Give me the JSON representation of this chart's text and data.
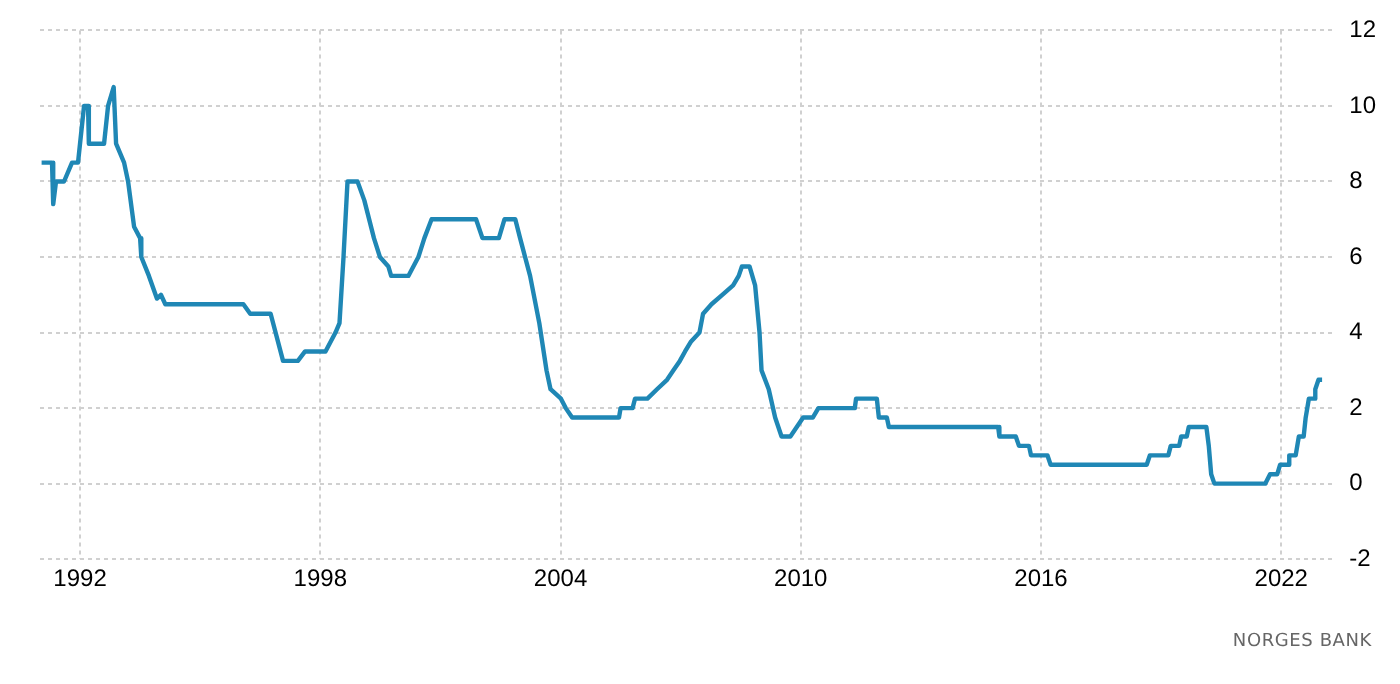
{
  "chart_data": {
    "type": "line",
    "annotations": [
      "NORGES BANK"
    ],
    "x": [
      1991.04,
      1991.3,
      1991.33,
      1991.4,
      1991.6,
      1991.8,
      1991.95,
      1992.1,
      1992.2,
      1992.22,
      1992.6,
      1992.7,
      1992.84,
      1992.9,
      1993.0,
      1993.1,
      1993.2,
      1993.35,
      1993.5,
      1993.53,
      1993.72,
      1993.92,
      1994.02,
      1994.13,
      1996.08,
      1996.25,
      1996.76,
      1997.07,
      1997.44,
      1997.62,
      1998.13,
      1998.38,
      1998.48,
      1998.58,
      1998.68,
      1998.93,
      1999.1,
      1999.34,
      1999.49,
      1999.7,
      1999.77,
      2000.2,
      2000.45,
      2000.6,
      2000.78,
      2001.89,
      2002.05,
      2002.46,
      2002.6,
      2002.87,
      2002.99,
      2003.24,
      2003.47,
      2003.65,
      2003.75,
      2004.01,
      2004.13,
      2004.29,
      2005.46,
      2005.5,
      2005.8,
      2005.86,
      2006.17,
      2006.41,
      2006.66,
      2006.82,
      2006.98,
      2007.11,
      2007.25,
      2007.47,
      2007.56,
      2007.77,
      2008.04,
      2008.31,
      2008.45,
      2008.53,
      2008.72,
      2008.86,
      2008.97,
      2009.02,
      2009.2,
      2009.36,
      2009.52,
      2009.74,
      2009.9,
      2010.06,
      2010.3,
      2010.44,
      2011.35,
      2011.38,
      2011.9,
      2011.95,
      2012.15,
      2012.2,
      2014.93,
      2014.96,
      2015.37,
      2015.45,
      2015.7,
      2015.75,
      2016.16,
      2016.24,
      2018.64,
      2018.72,
      2019.18,
      2019.24,
      2019.45,
      2019.5,
      2019.64,
      2019.69,
      2020.13,
      2020.19,
      2020.25,
      2020.33,
      2021.6,
      2021.72,
      2021.9,
      2021.97,
      2022.17,
      2022.2,
      2022.36,
      2022.44,
      2022.56,
      2022.61,
      2022.69,
      2022.82,
      2022.85,
      2022.93,
      2023.02
    ],
    "series": [
      {
        "color": "#1f87b5",
        "values": [
          8.5,
          8.5,
          7.4,
          8.0,
          8.0,
          8.5,
          8.5,
          10.0,
          10.0,
          9.0,
          9.0,
          10.0,
          10.5,
          9.0,
          8.75,
          8.5,
          8.0,
          6.8,
          6.5,
          6.0,
          5.5,
          4.9,
          5.0,
          4.75,
          4.75,
          4.5,
          4.5,
          3.25,
          3.25,
          3.5,
          3.5,
          4.0,
          4.25,
          6.0,
          8.0,
          8.0,
          7.5,
          6.5,
          6.0,
          5.75,
          5.5,
          5.5,
          6.0,
          6.5,
          7.0,
          7.0,
          6.5,
          6.5,
          7.0,
          7.0,
          6.5,
          5.5,
          4.25,
          3.0,
          2.5,
          2.25,
          2.0,
          1.75,
          1.75,
          2.0,
          2.0,
          2.25,
          2.25,
          2.5,
          2.75,
          3.0,
          3.25,
          3.5,
          3.75,
          4.0,
          4.5,
          4.75,
          5.0,
          5.25,
          5.5,
          5.75,
          5.75,
          5.25,
          4.0,
          3.0,
          2.5,
          1.75,
          1.25,
          1.25,
          1.5,
          1.75,
          1.75,
          2.0,
          2.0,
          2.25,
          2.25,
          1.75,
          1.75,
          1.5,
          1.5,
          1.25,
          1.25,
          1.0,
          1.0,
          0.75,
          0.75,
          0.5,
          0.5,
          0.75,
          0.75,
          1.0,
          1.0,
          1.25,
          1.25,
          1.5,
          1.5,
          1.0,
          0.25,
          0.0,
          0.0,
          0.25,
          0.25,
          0.5,
          0.5,
          0.75,
          0.75,
          1.25,
          1.25,
          1.75,
          2.25,
          2.25,
          2.5,
          2.75,
          2.75
        ]
      }
    ],
    "xlim": [
      1991.0,
      2023.3
    ],
    "xticks": [
      1992,
      1998,
      2004,
      2010,
      2016,
      2022
    ],
    "ylim": [
      -2,
      12
    ],
    "yticks": [
      -2,
      0,
      2,
      4,
      6,
      8,
      10,
      12
    ],
    "grid": true,
    "legend": false,
    "marker": "none",
    "line_style": "solid"
  }
}
